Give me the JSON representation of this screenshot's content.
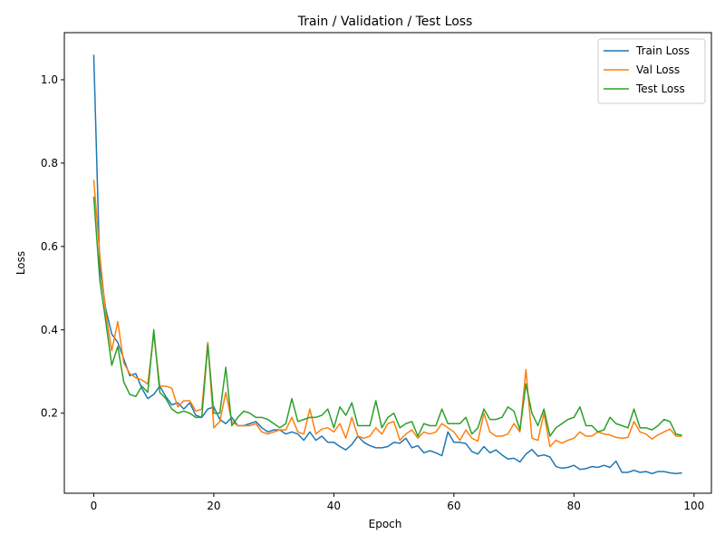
{
  "chart_data": {
    "type": "line",
    "title": "Train / Validation / Test Loss",
    "xlabel": "Epoch",
    "ylabel": "Loss",
    "xlim": [
      -4.9,
      102.9
    ],
    "ylim": [
      0.008,
      1.113
    ],
    "xticks": [
      0,
      20,
      40,
      60,
      80,
      100
    ],
    "yticks": [
      0.2,
      0.4,
      0.6,
      0.8,
      1.0
    ],
    "ytick_labels": [
      "0.2",
      "0.4",
      "0.6",
      "0.8",
      "1.0"
    ],
    "grid": false,
    "legend_position": "top-right",
    "series": [
      {
        "name": "Train Loss",
        "color": "#1f77b4",
        "values": [
          1.06,
          0.55,
          0.45,
          0.39,
          0.37,
          0.33,
          0.29,
          0.295,
          0.26,
          0.235,
          0.245,
          0.265,
          0.24,
          0.22,
          0.225,
          0.21,
          0.225,
          0.195,
          0.19,
          0.21,
          0.215,
          0.185,
          0.175,
          0.19,
          0.17,
          0.17,
          0.175,
          0.18,
          0.165,
          0.155,
          0.16,
          0.16,
          0.15,
          0.155,
          0.15,
          0.135,
          0.155,
          0.135,
          0.145,
          0.13,
          0.13,
          0.12,
          0.112,
          0.125,
          0.145,
          0.13,
          0.122,
          0.117,
          0.117,
          0.12,
          0.13,
          0.128,
          0.14,
          0.117,
          0.122,
          0.105,
          0.11,
          0.105,
          0.098,
          0.155,
          0.13,
          0.13,
          0.127,
          0.108,
          0.102,
          0.12,
          0.105,
          0.112,
          0.1,
          0.09,
          0.092,
          0.083,
          0.102,
          0.113,
          0.097,
          0.1,
          0.095,
          0.072,
          0.068,
          0.07,
          0.075,
          0.065,
          0.067,
          0.072,
          0.07,
          0.075,
          0.07,
          0.085,
          0.058,
          0.058,
          0.063,
          0.058,
          0.06,
          0.055,
          0.06,
          0.06,
          0.057,
          0.055,
          0.057
        ]
      },
      {
        "name": "Val Loss",
        "color": "#ff7f0e",
        "values": [
          0.76,
          0.58,
          0.44,
          0.35,
          0.42,
          0.32,
          0.295,
          0.285,
          0.28,
          0.27,
          0.39,
          0.265,
          0.265,
          0.26,
          0.215,
          0.23,
          0.23,
          0.205,
          0.21,
          0.37,
          0.165,
          0.18,
          0.25,
          0.18,
          0.17,
          0.17,
          0.17,
          0.175,
          0.155,
          0.15,
          0.155,
          0.16,
          0.16,
          0.19,
          0.155,
          0.15,
          0.21,
          0.15,
          0.162,
          0.165,
          0.155,
          0.175,
          0.14,
          0.19,
          0.145,
          0.14,
          0.145,
          0.165,
          0.15,
          0.175,
          0.18,
          0.135,
          0.15,
          0.16,
          0.14,
          0.155,
          0.15,
          0.155,
          0.175,
          0.165,
          0.155,
          0.135,
          0.16,
          0.14,
          0.133,
          0.2,
          0.155,
          0.145,
          0.145,
          0.15,
          0.175,
          0.155,
          0.305,
          0.14,
          0.135,
          0.2,
          0.12,
          0.135,
          0.128,
          0.135,
          0.14,
          0.155,
          0.145,
          0.145,
          0.155,
          0.15,
          0.148,
          0.142,
          0.14,
          0.142,
          0.18,
          0.155,
          0.15,
          0.138,
          0.148,
          0.155,
          0.162,
          0.145,
          0.145
        ]
      },
      {
        "name": "Test Loss",
        "color": "#2ca02c",
        "values": [
          0.72,
          0.52,
          0.42,
          0.315,
          0.36,
          0.275,
          0.245,
          0.24,
          0.265,
          0.25,
          0.4,
          0.25,
          0.235,
          0.21,
          0.2,
          0.205,
          0.2,
          0.19,
          0.19,
          0.365,
          0.2,
          0.2,
          0.31,
          0.17,
          0.19,
          0.205,
          0.2,
          0.19,
          0.19,
          0.185,
          0.175,
          0.165,
          0.175,
          0.235,
          0.18,
          0.185,
          0.19,
          0.19,
          0.195,
          0.21,
          0.165,
          0.215,
          0.195,
          0.225,
          0.17,
          0.17,
          0.17,
          0.23,
          0.165,
          0.19,
          0.2,
          0.165,
          0.175,
          0.18,
          0.145,
          0.175,
          0.17,
          0.17,
          0.21,
          0.175,
          0.175,
          0.175,
          0.19,
          0.15,
          0.165,
          0.21,
          0.185,
          0.185,
          0.19,
          0.215,
          0.205,
          0.16,
          0.27,
          0.2,
          0.17,
          0.21,
          0.145,
          0.165,
          0.175,
          0.185,
          0.19,
          0.215,
          0.17,
          0.17,
          0.155,
          0.16,
          0.19,
          0.175,
          0.17,
          0.165,
          0.21,
          0.165,
          0.165,
          0.16,
          0.17,
          0.185,
          0.18,
          0.15,
          0.147
        ]
      }
    ]
  }
}
